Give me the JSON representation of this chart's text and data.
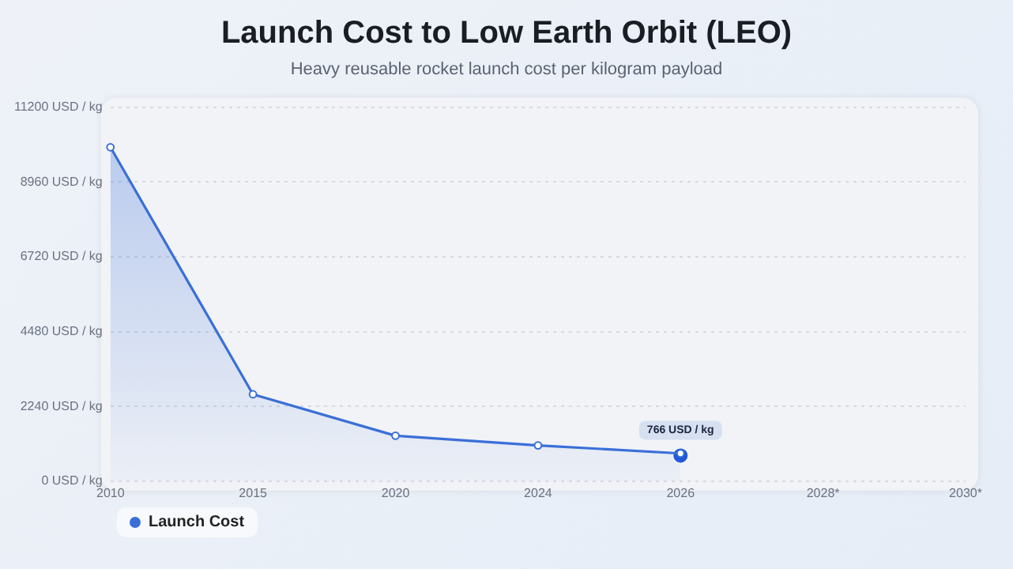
{
  "chart_data": {
    "type": "area",
    "title": "Launch Cost to Low Earth Orbit (LEO)",
    "subtitle": "Heavy reusable rocket launch cost per kilogram payload",
    "categories": [
      "2010",
      "2015",
      "2020",
      "2024",
      "2026",
      "2028*",
      "2030*"
    ],
    "series": [
      {
        "name": "Launch Cost",
        "color": "#3a6fd8",
        "values": [
          10000,
          2600,
          1360,
          1070,
          830,
          null,
          null
        ]
      },
      {
        "type": "scatter",
        "color": "#2158d6",
        "values": [
          null,
          null,
          null,
          null,
          766,
          null,
          null
        ],
        "value_labels": [
          null,
          null,
          null,
          null,
          "766 USD / kg",
          null,
          null
        ]
      }
    ],
    "ylim": [
      0,
      11200
    ],
    "yticks": [
      {
        "value": 0,
        "label": "0 USD / kg"
      },
      {
        "value": 2240,
        "label": "2240 USD / kg"
      },
      {
        "value": 4480,
        "label": "4480 USD / kg"
      },
      {
        "value": 6720,
        "label": "6720 USD / kg"
      },
      {
        "value": 8960,
        "label": "8960 USD / kg"
      },
      {
        "value": 11200,
        "label": "11200 USD / kg"
      }
    ],
    "grid": "y",
    "legend": "bottom left",
    "marker": "circle"
  }
}
